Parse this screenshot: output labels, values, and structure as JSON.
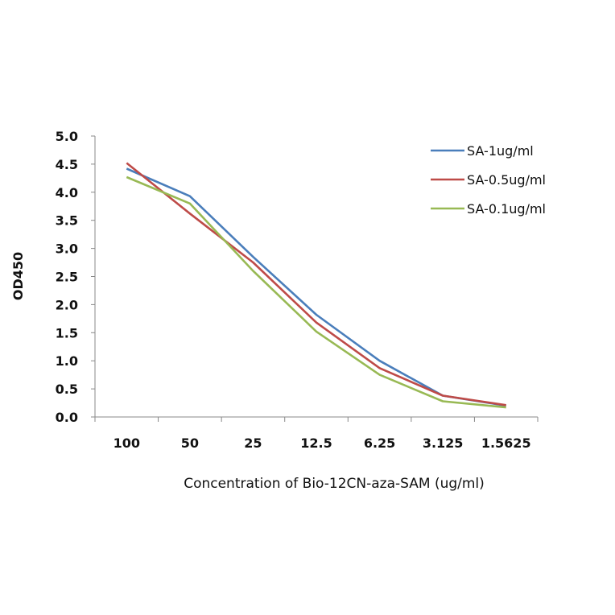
{
  "chart_data": {
    "type": "line",
    "title": "",
    "xlabel": "Concentration of Bio-12CN-aza-SAM (ug/ml)",
    "ylabel": "OD450",
    "categories": [
      "100",
      "50",
      "25",
      "12.5",
      "6.25",
      "3.125",
      "1.5625"
    ],
    "ylim": [
      0,
      5
    ],
    "yticks": [
      "0.0",
      "0.5",
      "1.0",
      "1.5",
      "2.0",
      "2.5",
      "3.0",
      "3.5",
      "4.0",
      "4.5",
      "5.0"
    ],
    "grid": false,
    "legend_position": "top-right",
    "series": [
      {
        "name": "SA-1ug/ml",
        "color": "#4a7ebb",
        "values": [
          4.42,
          3.93,
          2.85,
          1.82,
          1.0,
          0.38,
          0.2
        ]
      },
      {
        "name": "SA-0.5ug/ml",
        "color": "#be4b48",
        "values": [
          4.52,
          3.62,
          2.75,
          1.68,
          0.87,
          0.38,
          0.21
        ]
      },
      {
        "name": "SA-0.1ug/ml",
        "color": "#98b954",
        "values": [
          4.27,
          3.8,
          2.6,
          1.52,
          0.75,
          0.28,
          0.17
        ]
      }
    ]
  }
}
